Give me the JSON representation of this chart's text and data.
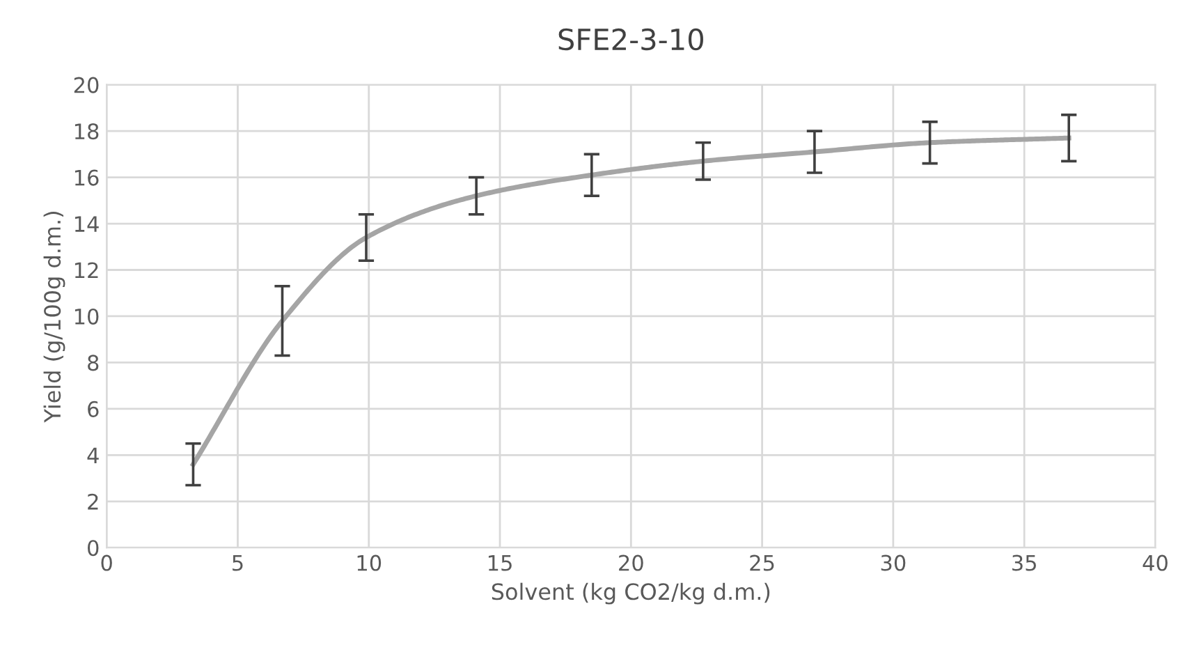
{
  "chart_data": {
    "type": "line",
    "title": "SFE2-3-10",
    "xlabel": "Solvent (kg CO2/kg d.m.)",
    "ylabel": "Yield (g/100g d.m.)",
    "x": [
      3.3,
      6.7,
      9.9,
      14.1,
      18.5,
      22.75,
      27.0,
      31.4,
      36.7
    ],
    "series": [
      {
        "color": "#a5a5a5",
        "values": [
          3.6,
          9.8,
          13.4,
          15.2,
          16.1,
          16.7,
          17.1,
          17.5,
          17.7
        ],
        "errors": [
          0.9,
          1.5,
          1.0,
          0.8,
          0.9,
          0.8,
          0.9,
          0.9,
          1.0
        ]
      }
    ],
    "xlim": [
      0,
      40
    ],
    "xticks": [
      0,
      5,
      10,
      15,
      20,
      25,
      30,
      35,
      40
    ],
    "ylim": [
      0,
      20
    ],
    "yticks": [
      0,
      2,
      4,
      6,
      8,
      10,
      12,
      14,
      16,
      18,
      20
    ],
    "grid": true,
    "marker": "none",
    "line_style": "solid",
    "legend": false
  }
}
